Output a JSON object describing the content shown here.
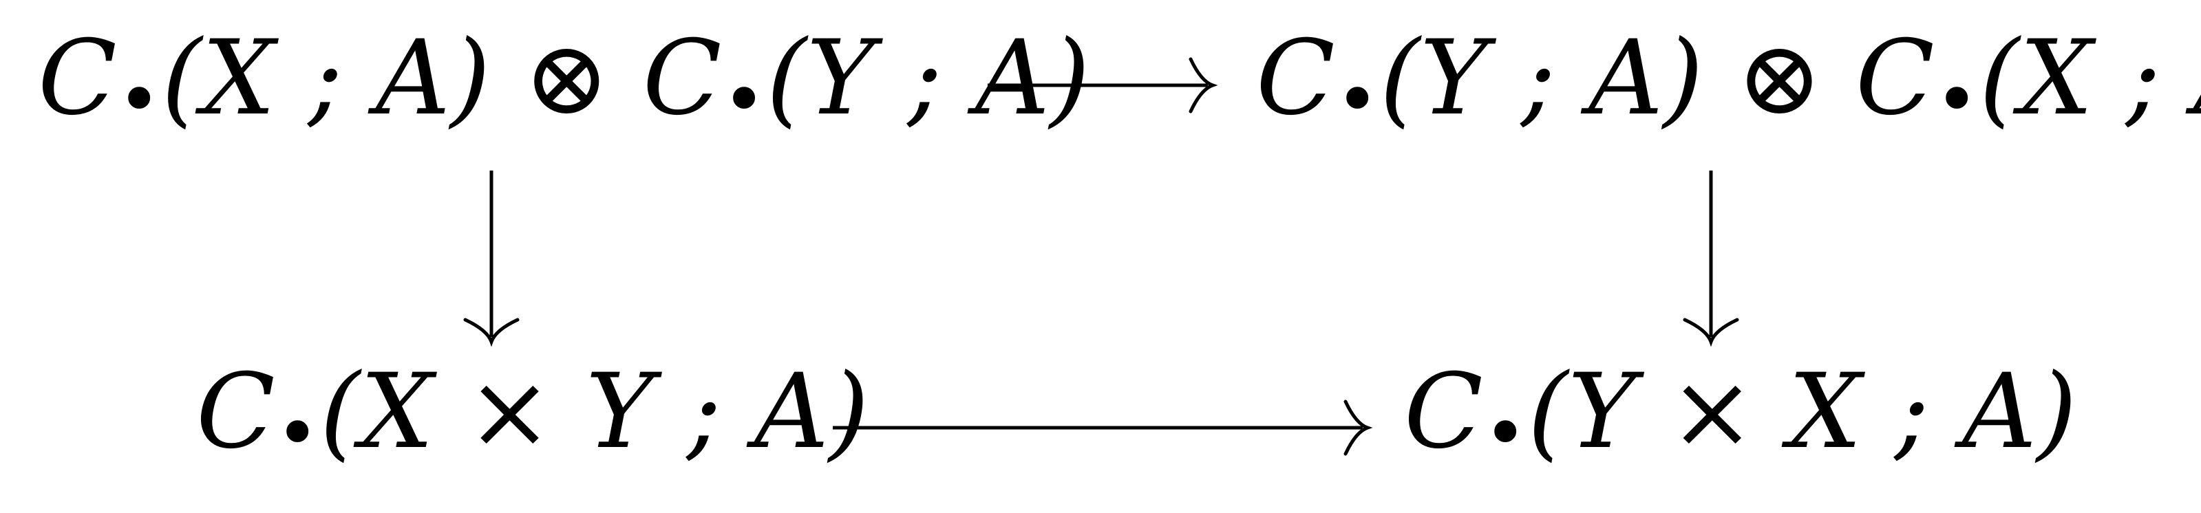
{
  "diagram": {
    "nodes": {
      "top_left": {
        "parts": [
          "C",
          "•",
          "(X ; A)",
          " ⊗ ",
          "C",
          "•",
          "(Y ; A)"
        ]
      },
      "top_right": {
        "parts": [
          "C",
          "•",
          "(Y ; A)",
          " ⊗ ",
          "C",
          "•",
          "(X ; A)"
        ]
      },
      "bottom_left": {
        "parts": [
          "C",
          "•",
          "(X × Y ; A)"
        ]
      },
      "bottom_right": {
        "parts": [
          "C",
          "•",
          "(Y × X ; A)"
        ]
      }
    },
    "arrows": [
      {
        "from": "top_left",
        "to": "top_right"
      },
      {
        "from": "top_left",
        "to": "bottom_left"
      },
      {
        "from": "top_right",
        "to": "bottom_right"
      },
      {
        "from": "bottom_left",
        "to": "bottom_right"
      }
    ]
  }
}
